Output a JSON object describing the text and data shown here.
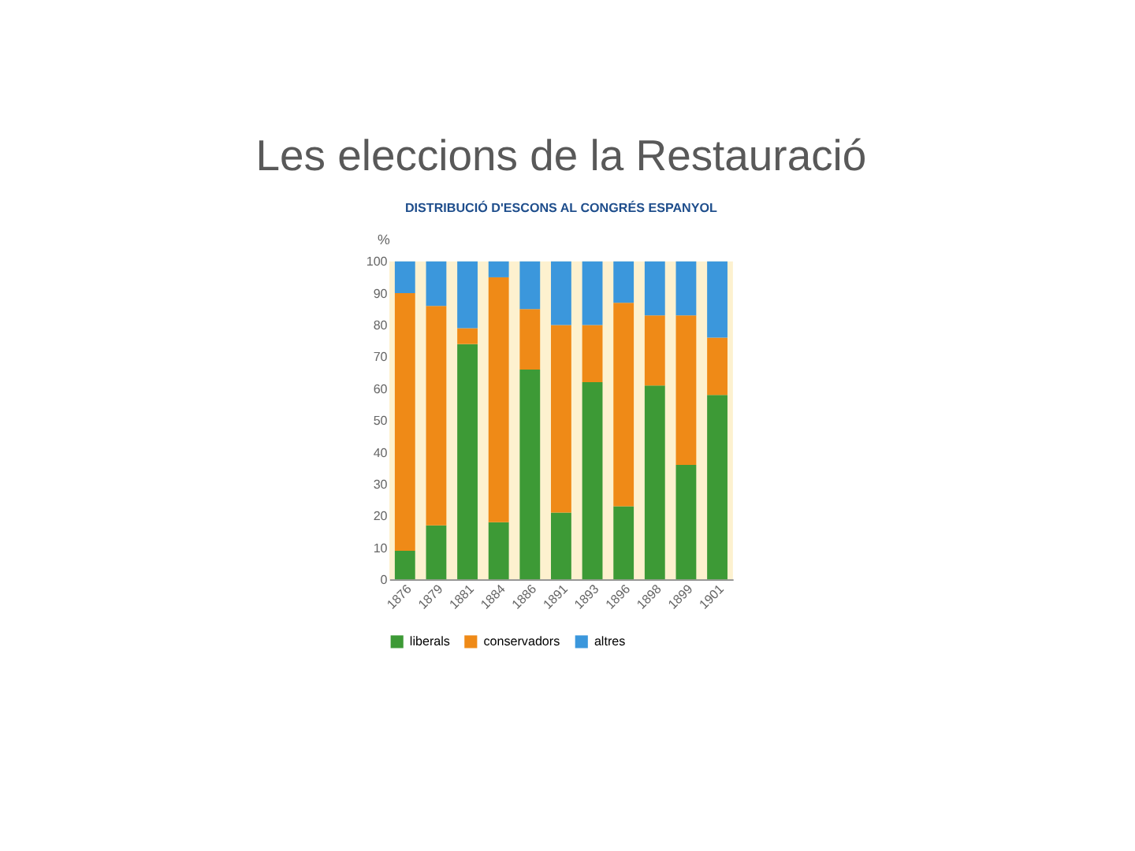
{
  "chart_data": {
    "type": "bar",
    "title": "Les eleccions de la Restauració",
    "subtitle": "DISTRIBUCIÓ D'ESCONS AL CONGRÉS ESPANYOL",
    "ylabel": "%",
    "categories": [
      "1876",
      "1879",
      "1881",
      "1884",
      "1886",
      "1891",
      "1893",
      "1896",
      "1898",
      "1899",
      "1901"
    ],
    "stacked": true,
    "ylim": [
      0,
      100
    ],
    "yticks": [
      0,
      10,
      20,
      30,
      40,
      50,
      60,
      70,
      80,
      90,
      100
    ],
    "grid": false,
    "legend": "bottom",
    "series": [
      {
        "name": "liberals",
        "color": "#3d9a36",
        "values": [
          9,
          17,
          74,
          18,
          66,
          21,
          62,
          23,
          61,
          36,
          58
        ]
      },
      {
        "name": "conservadors",
        "color": "#ef8a17",
        "values": [
          81,
          69,
          5,
          77,
          19,
          59,
          18,
          64,
          22,
          47,
          18
        ]
      },
      {
        "name": "altres",
        "color": "#3b97dc",
        "values": [
          10,
          14,
          21,
          5,
          15,
          20,
          20,
          13,
          17,
          17,
          24
        ]
      }
    ]
  }
}
